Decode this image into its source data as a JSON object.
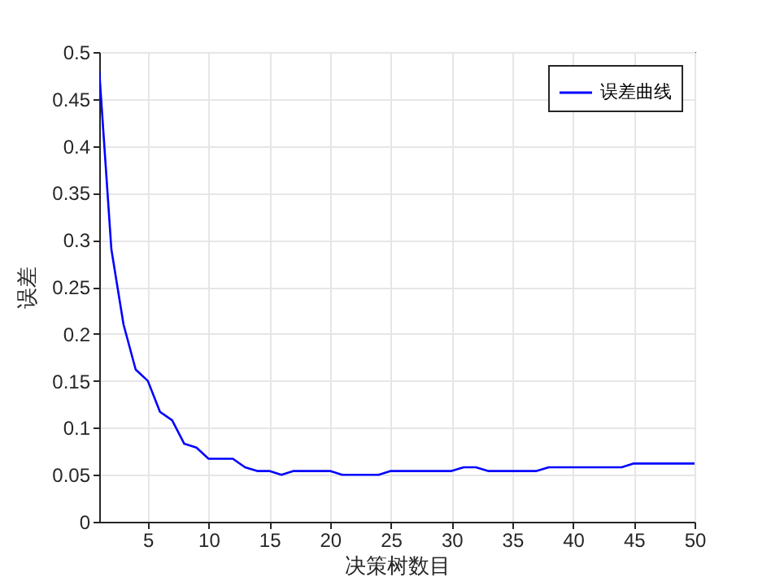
{
  "chart_data": {
    "type": "line",
    "xlabel": "决策树数目",
    "ylabel": "误差",
    "x": [
      1,
      2,
      3,
      4,
      5,
      6,
      7,
      8,
      9,
      10,
      11,
      12,
      13,
      14,
      15,
      16,
      17,
      18,
      19,
      20,
      21,
      22,
      23,
      24,
      25,
      26,
      27,
      28,
      29,
      30,
      31,
      32,
      33,
      34,
      35,
      36,
      37,
      38,
      39,
      40,
      41,
      42,
      43,
      44,
      45,
      46,
      47,
      48,
      49,
      50
    ],
    "series": [
      {
        "name": "误差曲线",
        "color": "#0000ff",
        "values": [
          0.48,
          0.29,
          0.21,
          0.162,
          0.15,
          0.117,
          0.108,
          0.083,
          0.079,
          0.067,
          0.067,
          0.067,
          0.058,
          0.054,
          0.054,
          0.05,
          0.054,
          0.054,
          0.054,
          0.054,
          0.05,
          0.05,
          0.05,
          0.05,
          0.054,
          0.054,
          0.054,
          0.054,
          0.054,
          0.054,
          0.058,
          0.058,
          0.054,
          0.054,
          0.054,
          0.054,
          0.054,
          0.058,
          0.058,
          0.058,
          0.058,
          0.058,
          0.058,
          0.058,
          0.062,
          0.062,
          0.062,
          0.062,
          0.062,
          0.062
        ]
      }
    ],
    "xlim": [
      1,
      50
    ],
    "xticks": [
      5,
      10,
      15,
      20,
      25,
      30,
      35,
      40,
      45,
      50
    ],
    "ylim": [
      0,
      0.5
    ],
    "yticks": [
      0,
      0.05,
      0.1,
      0.15,
      0.2,
      0.25,
      0.3,
      0.35,
      0.4,
      0.45,
      0.5
    ],
    "grid": true,
    "legend": "top right",
    "marker": "none",
    "line_style": "solid"
  }
}
